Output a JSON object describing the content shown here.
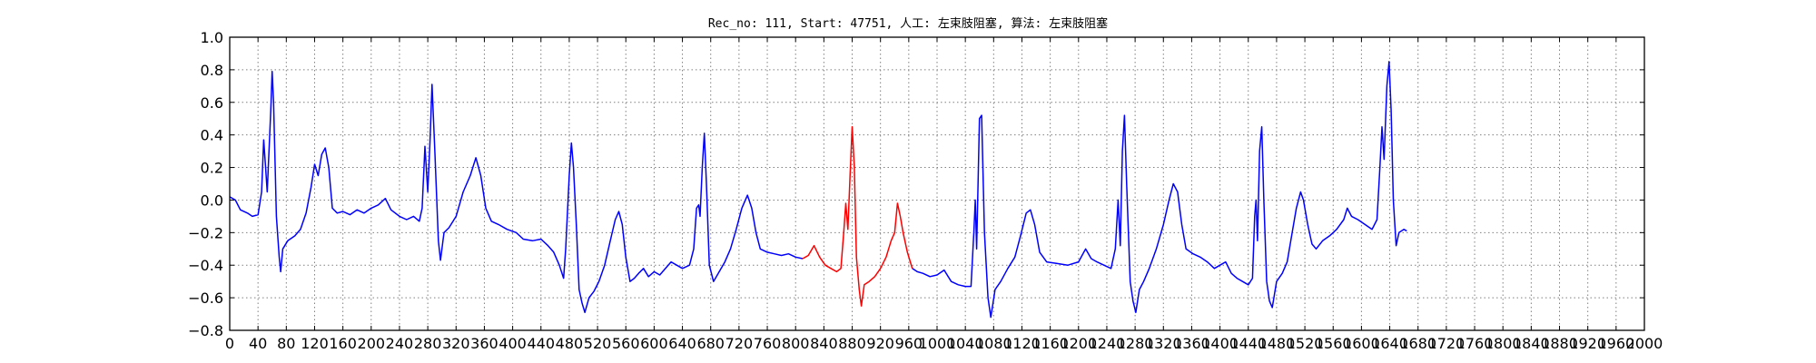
{
  "chart_data": {
    "type": "line",
    "title": "Rec_no: 111, Start: 47751, 人工: 左束肢阻塞, 算法: 左束肢阻塞",
    "xlabel": "",
    "ylabel": "",
    "xlim": [
      0,
      2000
    ],
    "ylim": [
      -0.8,
      1.0
    ],
    "grid": true,
    "y_ticks": [
      1.0,
      0.8,
      0.6,
      0.4,
      0.2,
      0.0,
      -0.2,
      -0.4,
      -0.6,
      -0.8
    ],
    "y_tick_labels": [
      "1.0",
      "0.8",
      "0.6",
      "0.4",
      "0.2",
      "0.0",
      "−0.2",
      "−0.4",
      "−0.6",
      "−0.8"
    ],
    "x_ticks": [
      0,
      40,
      80,
      120,
      160,
      200,
      240,
      280,
      320,
      360,
      400,
      440,
      480,
      520,
      560,
      600,
      640,
      680,
      720,
      760,
      800,
      840,
      880,
      920,
      960,
      1000,
      1040,
      1080,
      1120,
      1160,
      1200,
      1240,
      1280,
      1320,
      1360,
      1400,
      1440,
      1480,
      1520,
      1560,
      1600,
      1640,
      1680,
      1720,
      1760,
      1800,
      1840,
      1880,
      1920,
      1960,
      2000
    ],
    "x_tick_labels": [
      "0",
      "40",
      "80",
      "120",
      "160",
      "200",
      "240",
      "280",
      "320",
      "360",
      "400",
      "440",
      "480",
      "520",
      "560",
      "600",
      "640",
      "680",
      "720",
      "760",
      "800",
      "840",
      "880",
      "920",
      "960",
      "1000",
      "1040",
      "1080",
      "1120",
      "1160",
      "1200",
      "1240",
      "1280",
      "1320",
      "1360",
      "1400",
      "1440",
      "1480",
      "1520",
      "1560",
      "1600",
      "1640",
      "1680",
      "1720",
      "1760",
      "1800",
      "1840",
      "1880",
      "1920",
      "1960",
      "2000"
    ],
    "series": [
      {
        "color": "#0000ff",
        "points": [
          [
            0,
            0.02
          ],
          [
            8,
            0.0
          ],
          [
            15,
            -0.06
          ],
          [
            25,
            -0.08
          ],
          [
            32,
            -0.1
          ],
          [
            40,
            -0.09
          ],
          [
            45,
            0.05
          ],
          [
            48,
            0.37
          ],
          [
            50,
            0.25
          ],
          [
            53,
            0.05
          ],
          [
            58,
            0.55
          ],
          [
            60,
            0.79
          ],
          [
            62,
            0.6
          ],
          [
            66,
            -0.1
          ],
          [
            70,
            -0.35
          ],
          [
            72,
            -0.44
          ],
          [
            75,
            -0.3
          ],
          [
            82,
            -0.25
          ],
          [
            92,
            -0.22
          ],
          [
            100,
            -0.18
          ],
          [
            108,
            -0.08
          ],
          [
            115,
            0.08
          ],
          [
            120,
            0.22
          ],
          [
            125,
            0.15
          ],
          [
            130,
            0.28
          ],
          [
            135,
            0.32
          ],
          [
            140,
            0.2
          ],
          [
            145,
            -0.05
          ],
          [
            152,
            -0.08
          ],
          [
            160,
            -0.07
          ],
          [
            170,
            -0.09
          ],
          [
            180,
            -0.06
          ],
          [
            190,
            -0.08
          ],
          [
            200,
            -0.05
          ],
          [
            210,
            -0.03
          ],
          [
            220,
            0.01
          ],
          [
            228,
            -0.06
          ],
          [
            240,
            -0.1
          ],
          [
            250,
            -0.12
          ],
          [
            260,
            -0.1
          ],
          [
            268,
            -0.13
          ],
          [
            272,
            -0.05
          ],
          [
            276,
            0.33
          ],
          [
            280,
            0.05
          ],
          [
            283,
            0.35
          ],
          [
            286,
            0.71
          ],
          [
            290,
            0.3
          ],
          [
            295,
            -0.25
          ],
          [
            298,
            -0.37
          ],
          [
            303,
            -0.2
          ],
          [
            310,
            -0.17
          ],
          [
            320,
            -0.1
          ],
          [
            330,
            0.05
          ],
          [
            340,
            0.15
          ],
          [
            348,
            0.26
          ],
          [
            355,
            0.15
          ],
          [
            362,
            -0.05
          ],
          [
            370,
            -0.13
          ],
          [
            380,
            -0.15
          ],
          [
            392,
            -0.18
          ],
          [
            405,
            -0.2
          ],
          [
            415,
            -0.24
          ],
          [
            428,
            -0.25
          ],
          [
            440,
            -0.24
          ],
          [
            450,
            -0.28
          ],
          [
            458,
            -0.32
          ],
          [
            466,
            -0.4
          ],
          [
            472,
            -0.48
          ],
          [
            475,
            -0.3
          ],
          [
            480,
            0.15
          ],
          [
            483,
            0.35
          ],
          [
            486,
            0.2
          ],
          [
            490,
            -0.15
          ],
          [
            494,
            -0.55
          ],
          [
            498,
            -0.63
          ],
          [
            502,
            -0.69
          ],
          [
            508,
            -0.6
          ],
          [
            515,
            -0.56
          ],
          [
            522,
            -0.5
          ],
          [
            530,
            -0.4
          ],
          [
            538,
            -0.25
          ],
          [
            545,
            -0.12
          ],
          [
            550,
            -0.07
          ],
          [
            555,
            -0.15
          ],
          [
            560,
            -0.35
          ],
          [
            566,
            -0.5
          ],
          [
            572,
            -0.48
          ],
          [
            578,
            -0.45
          ],
          [
            585,
            -0.42
          ],
          [
            592,
            -0.47
          ],
          [
            600,
            -0.44
          ],
          [
            608,
            -0.46
          ],
          [
            616,
            -0.42
          ],
          [
            624,
            -0.38
          ],
          [
            632,
            -0.4
          ],
          [
            640,
            -0.42
          ],
          [
            650,
            -0.4
          ],
          [
            656,
            -0.3
          ],
          [
            660,
            -0.05
          ],
          [
            663,
            -0.03
          ],
          [
            665,
            -0.1
          ],
          [
            668,
            0.2
          ],
          [
            671,
            0.41
          ],
          [
            674,
            0.1
          ],
          [
            678,
            -0.4
          ],
          [
            684,
            -0.5
          ],
          [
            692,
            -0.44
          ],
          [
            700,
            -0.38
          ],
          [
            708,
            -0.3
          ],
          [
            716,
            -0.18
          ],
          [
            724,
            -0.05
          ],
          [
            732,
            0.03
          ],
          [
            738,
            -0.05
          ],
          [
            744,
            -0.2
          ],
          [
            750,
            -0.3
          ],
          [
            760,
            -0.32
          ],
          [
            770,
            -0.33
          ],
          [
            780,
            -0.34
          ],
          [
            790,
            -0.33
          ],
          [
            800,
            -0.35
          ],
          [
            810,
            -0.36
          ]
        ]
      },
      {
        "color": "#ff0000",
        "points": [
          [
            810,
            -0.36
          ],
          [
            818,
            -0.34
          ],
          [
            826,
            -0.28
          ],
          [
            834,
            -0.35
          ],
          [
            842,
            -0.4
          ],
          [
            850,
            -0.42
          ],
          [
            858,
            -0.44
          ],
          [
            864,
            -0.42
          ],
          [
            868,
            -0.2
          ],
          [
            871,
            -0.02
          ],
          [
            874,
            -0.18
          ],
          [
            877,
            0.15
          ],
          [
            880,
            0.45
          ],
          [
            883,
            0.2
          ],
          [
            886,
            -0.35
          ],
          [
            890,
            -0.55
          ],
          [
            893,
            -0.65
          ],
          [
            897,
            -0.52
          ],
          [
            904,
            -0.5
          ],
          [
            912,
            -0.47
          ],
          [
            920,
            -0.42
          ],
          [
            928,
            -0.35
          ],
          [
            935,
            -0.25
          ],
          [
            940,
            -0.2
          ],
          [
            944,
            -0.02
          ],
          [
            948,
            -0.1
          ],
          [
            952,
            -0.2
          ],
          [
            958,
            -0.32
          ],
          [
            965,
            -0.42
          ]
        ]
      },
      {
        "color": "#0000ff",
        "points": [
          [
            965,
            -0.42
          ],
          [
            972,
            -0.44
          ],
          [
            980,
            -0.45
          ],
          [
            990,
            -0.47
          ],
          [
            1000,
            -0.46
          ],
          [
            1010,
            -0.43
          ],
          [
            1020,
            -0.5
          ],
          [
            1030,
            -0.52
          ],
          [
            1040,
            -0.53
          ],
          [
            1048,
            -0.53
          ],
          [
            1052,
            -0.2
          ],
          [
            1054,
            0.0
          ],
          [
            1056,
            -0.3
          ],
          [
            1060,
            0.5
          ],
          [
            1063,
            0.52
          ],
          [
            1067,
            -0.2
          ],
          [
            1072,
            -0.6
          ],
          [
            1076,
            -0.72
          ],
          [
            1082,
            -0.55
          ],
          [
            1090,
            -0.5
          ],
          [
            1100,
            -0.42
          ],
          [
            1110,
            -0.35
          ],
          [
            1118,
            -0.22
          ],
          [
            1126,
            -0.08
          ],
          [
            1132,
            -0.06
          ],
          [
            1138,
            -0.15
          ],
          [
            1145,
            -0.32
          ],
          [
            1155,
            -0.38
          ],
          [
            1170,
            -0.39
          ],
          [
            1185,
            -0.4
          ],
          [
            1200,
            -0.38
          ],
          [
            1210,
            -0.3
          ],
          [
            1218,
            -0.36
          ],
          [
            1226,
            -0.38
          ],
          [
            1236,
            -0.4
          ],
          [
            1246,
            -0.42
          ],
          [
            1252,
            -0.3
          ],
          [
            1256,
            0.0
          ],
          [
            1259,
            -0.28
          ],
          [
            1262,
            0.3
          ],
          [
            1265,
            0.52
          ],
          [
            1268,
            0.1
          ],
          [
            1273,
            -0.5
          ],
          [
            1277,
            -0.62
          ],
          [
            1281,
            -0.69
          ],
          [
            1286,
            -0.55
          ],
          [
            1292,
            -0.5
          ],
          [
            1300,
            -0.42
          ],
          [
            1310,
            -0.3
          ],
          [
            1320,
            -0.15
          ],
          [
            1328,
            0.0
          ],
          [
            1334,
            0.1
          ],
          [
            1340,
            0.05
          ],
          [
            1346,
            -0.15
          ],
          [
            1352,
            -0.3
          ],
          [
            1362,
            -0.33
          ],
          [
            1372,
            -0.35
          ],
          [
            1382,
            -0.38
          ],
          [
            1392,
            -0.42
          ],
          [
            1400,
            -0.4
          ],
          [
            1408,
            -0.38
          ],
          [
            1416,
            -0.45
          ],
          [
            1424,
            -0.48
          ],
          [
            1432,
            -0.5
          ],
          [
            1440,
            -0.52
          ],
          [
            1446,
            -0.48
          ],
          [
            1449,
            -0.1
          ],
          [
            1451,
            0.0
          ],
          [
            1453,
            -0.25
          ],
          [
            1456,
            0.3
          ],
          [
            1459,
            0.45
          ],
          [
            1462,
            0.0
          ],
          [
            1466,
            -0.5
          ],
          [
            1470,
            -0.62
          ],
          [
            1474,
            -0.66
          ],
          [
            1480,
            -0.5
          ],
          [
            1488,
            -0.45
          ],
          [
            1495,
            -0.38
          ],
          [
            1502,
            -0.2
          ],
          [
            1508,
            -0.05
          ],
          [
            1514,
            0.05
          ],
          [
            1518,
            0.0
          ],
          [
            1524,
            -0.15
          ],
          [
            1530,
            -0.27
          ],
          [
            1536,
            -0.3
          ],
          [
            1545,
            -0.25
          ],
          [
            1555,
            -0.22
          ],
          [
            1565,
            -0.18
          ],
          [
            1575,
            -0.12
          ],
          [
            1580,
            -0.05
          ],
          [
            1586,
            -0.1
          ],
          [
            1595,
            -0.12
          ],
          [
            1605,
            -0.15
          ],
          [
            1615,
            -0.18
          ],
          [
            1622,
            -0.12
          ],
          [
            1626,
            0.2
          ],
          [
            1629,
            0.45
          ],
          [
            1632,
            0.25
          ],
          [
            1636,
            0.7
          ],
          [
            1639,
            0.85
          ],
          [
            1642,
            0.55
          ],
          [
            1645,
            0.0
          ],
          [
            1649,
            -0.28
          ],
          [
            1653,
            -0.2
          ],
          [
            1660,
            -0.18
          ],
          [
            1664,
            -0.19
          ]
        ]
      }
    ]
  }
}
